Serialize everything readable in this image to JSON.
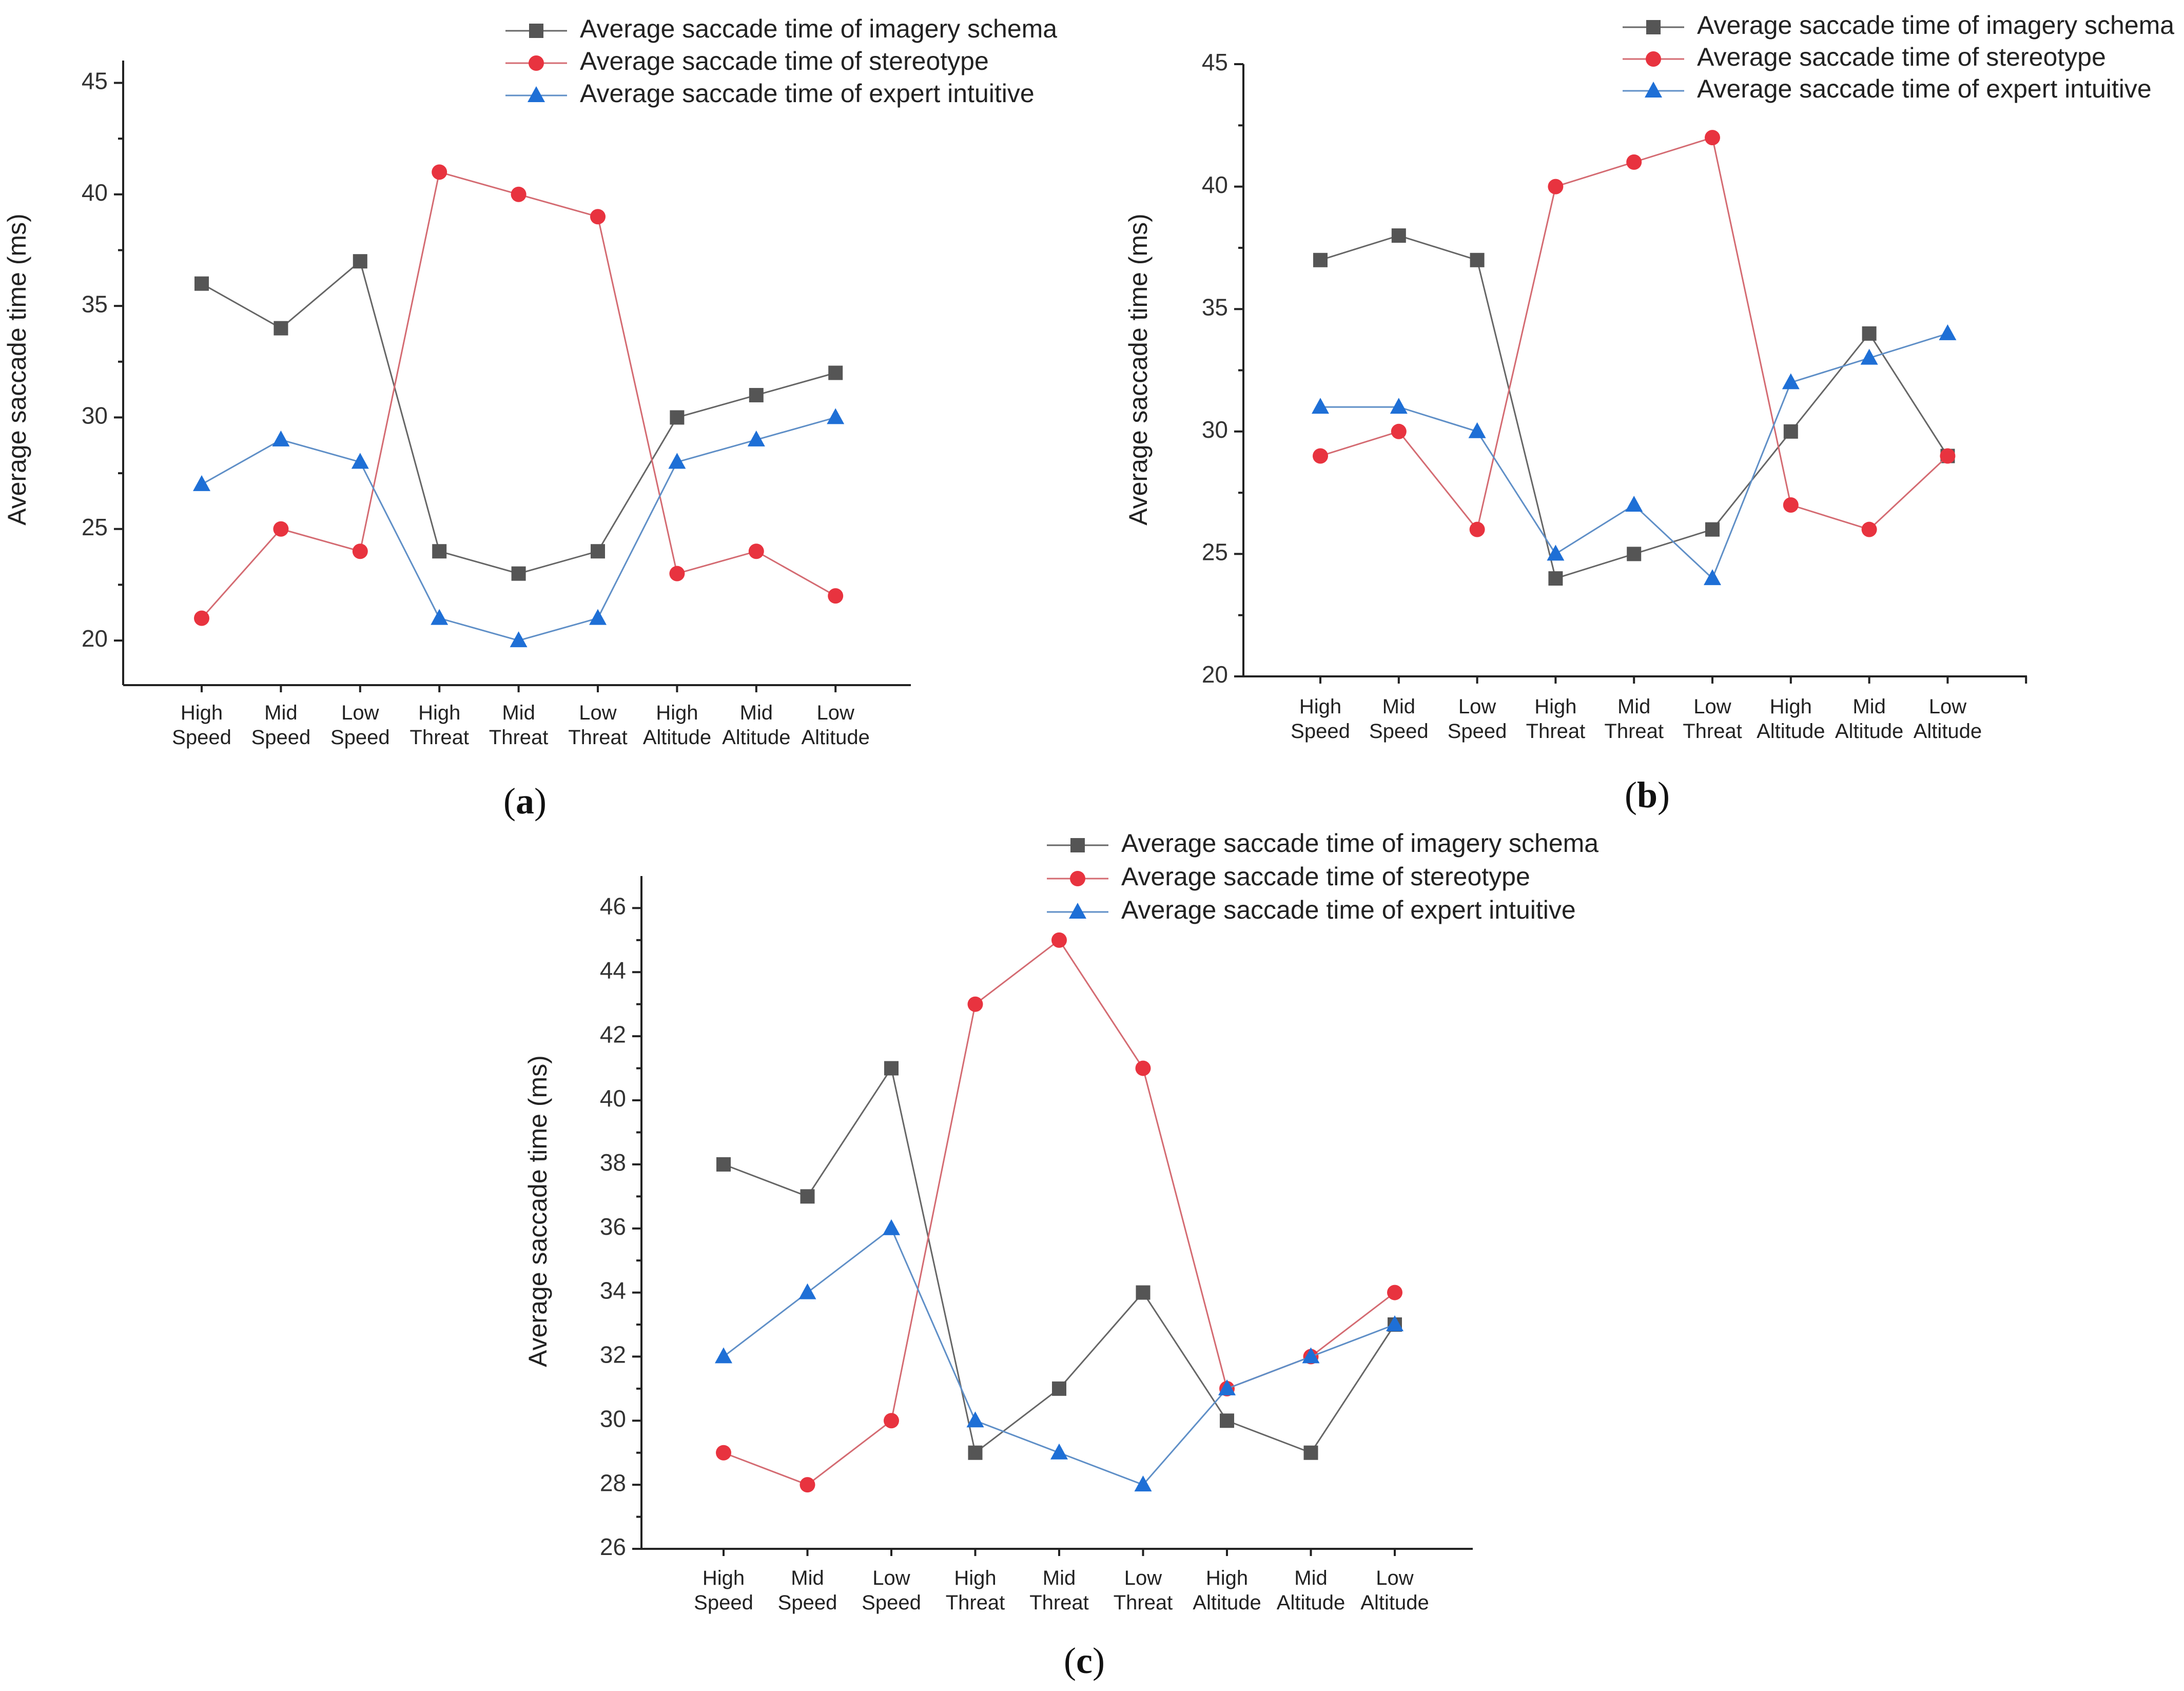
{
  "colors": {
    "imagery": "#555555",
    "stereotype": "#e8333f",
    "expert": "#1e6fd6",
    "imagery_line": "#666666",
    "stereotype_line": "#d46b72",
    "expert_line": "#5f8fc7"
  },
  "chart_data": [
    {
      "type": "line",
      "panel_label": "a",
      "xlabel": "",
      "ylabel": "Average saccade time  (ms)",
      "ylim": [
        18,
        46
      ],
      "yticks": [
        20,
        25,
        30,
        35,
        40,
        45
      ],
      "categories": [
        [
          "High",
          "Speed"
        ],
        [
          "Mid",
          "Speed"
        ],
        [
          "Low",
          "Speed"
        ],
        [
          "High",
          "Threat"
        ],
        [
          "Mid",
          "Threat"
        ],
        [
          "Low",
          "Threat"
        ],
        [
          "High",
          "Altitude"
        ],
        [
          "Mid",
          "Altitude"
        ],
        [
          "Low",
          "Altitude"
        ]
      ],
      "legend_position": "top-right",
      "series": [
        {
          "key": "imagery",
          "marker": "square",
          "name": "Average saccade time of imagery schema",
          "values": [
            36,
            34,
            37,
            24,
            23,
            24,
            30,
            31,
            32
          ]
        },
        {
          "key": "stereotype",
          "marker": "circle",
          "name": "Average saccade time of stereotype",
          "values": [
            21,
            25,
            24,
            41,
            40,
            39,
            23,
            24,
            22
          ]
        },
        {
          "key": "expert",
          "marker": "triangle",
          "name": "Average saccade time of expert intuitive",
          "values": [
            27,
            29,
            28,
            21,
            20,
            21,
            28,
            29,
            30
          ]
        }
      ]
    },
    {
      "type": "line",
      "panel_label": "b",
      "xlabel": "",
      "ylabel": "Average saccade time  (ms)",
      "ylim": [
        20,
        45
      ],
      "yticks": [
        20,
        25,
        30,
        35,
        40,
        45
      ],
      "categories": [
        [
          "High",
          "Speed"
        ],
        [
          "Mid",
          "Speed"
        ],
        [
          "Low",
          "Speed"
        ],
        [
          "High",
          "Threat"
        ],
        [
          "Mid",
          "Threat"
        ],
        [
          "Low",
          "Threat"
        ],
        [
          "High",
          "Altitude"
        ],
        [
          "Mid",
          "Altitude"
        ],
        [
          "Low",
          "Altitude"
        ]
      ],
      "legend_position": "top-right",
      "series": [
        {
          "key": "imagery",
          "marker": "square",
          "name": "Average saccade time of imagery schema",
          "values": [
            37,
            38,
            37,
            24,
            25,
            26,
            30,
            34,
            29
          ]
        },
        {
          "key": "stereotype",
          "marker": "circle",
          "name": "Average saccade time of stereotype",
          "values": [
            29,
            30,
            26,
            40,
            41,
            42,
            27,
            26,
            29
          ]
        },
        {
          "key": "expert",
          "marker": "triangle",
          "name": "Average saccade time of expert intuitive",
          "values": [
            31,
            31,
            30,
            25,
            27,
            24,
            32,
            33,
            34
          ]
        }
      ]
    },
    {
      "type": "line",
      "panel_label": "c",
      "xlabel": "",
      "ylabel": "Average saccade time  (ms)",
      "ylim": [
        26,
        47
      ],
      "yticks": [
        26,
        28,
        30,
        32,
        34,
        36,
        38,
        40,
        42,
        44,
        46
      ],
      "categories": [
        [
          "High",
          "Speed"
        ],
        [
          "Mid",
          "Speed"
        ],
        [
          "Low",
          "Speed"
        ],
        [
          "High",
          "Threat"
        ],
        [
          "Mid",
          "Threat"
        ],
        [
          "Low",
          "Threat"
        ],
        [
          "High",
          "Altitude"
        ],
        [
          "Mid",
          "Altitude"
        ],
        [
          "Low",
          "Altitude"
        ]
      ],
      "legend_position": "top",
      "series": [
        {
          "key": "imagery",
          "marker": "square",
          "name": "Average saccade time of imagery schema",
          "values": [
            38,
            37,
            41,
            29,
            31,
            34,
            30,
            29,
            33
          ]
        },
        {
          "key": "stereotype",
          "marker": "circle",
          "name": "Average saccade time of stereotype",
          "values": [
            29,
            28,
            30,
            43,
            45,
            41,
            31,
            32,
            34
          ]
        },
        {
          "key": "expert",
          "marker": "triangle",
          "name": "Average saccade time of expert intuitive",
          "values": [
            32,
            34,
            36,
            30,
            29,
            28,
            31,
            32,
            33
          ]
        }
      ]
    }
  ]
}
